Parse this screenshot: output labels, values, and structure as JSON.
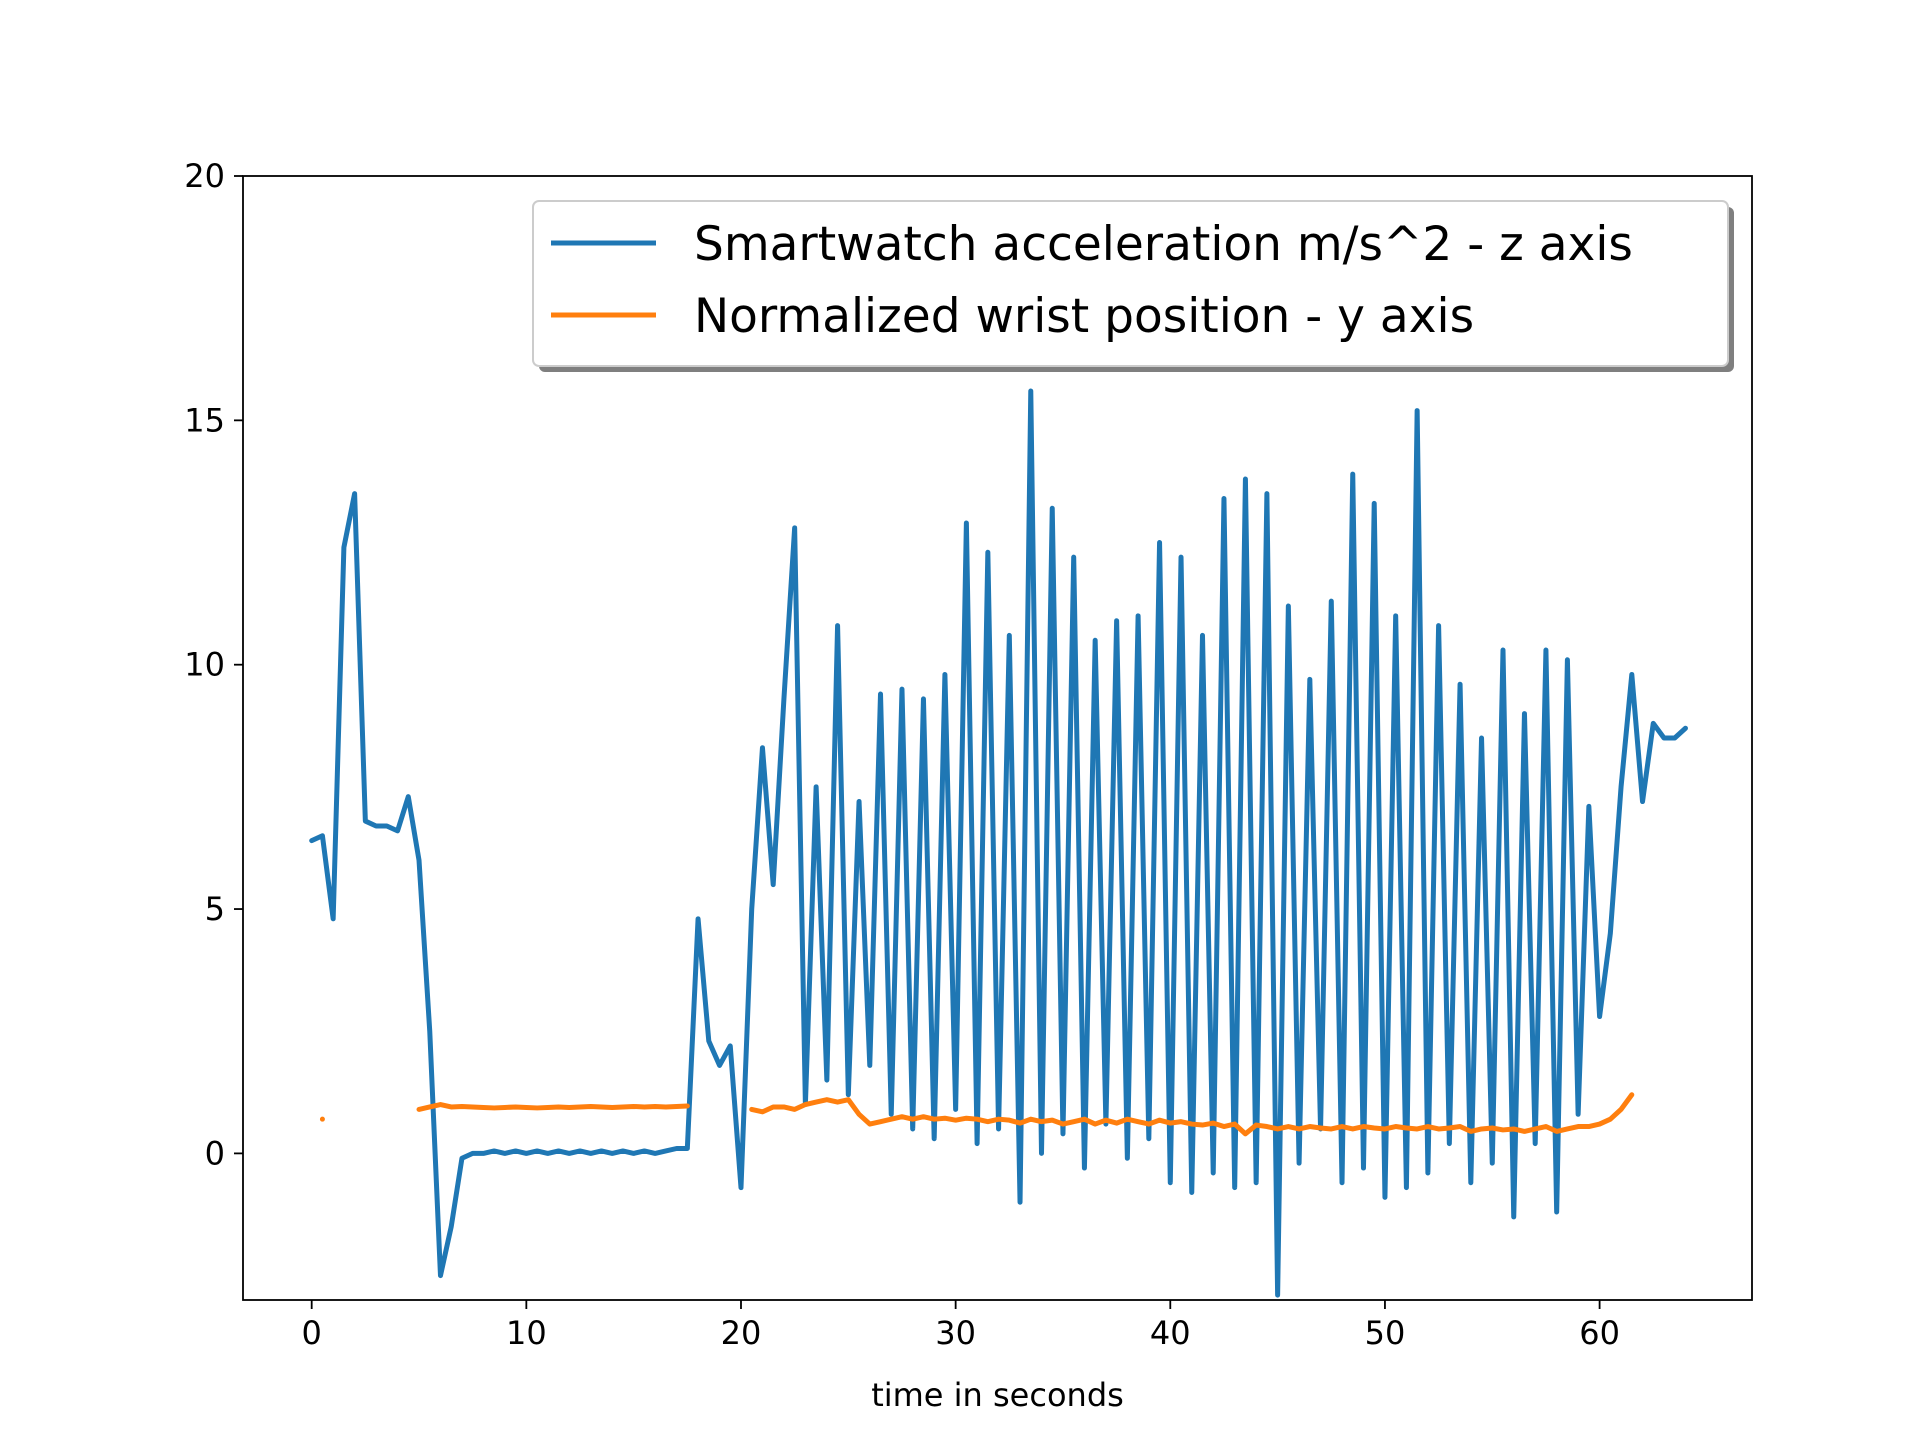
{
  "chart_data": {
    "type": "line",
    "x_label": "time in seconds",
    "x": [
      0,
      0.5,
      1,
      1.5,
      2,
      2.5,
      3,
      3.5,
      4,
      4.5,
      5,
      5.5,
      6,
      6.5,
      7,
      7.5,
      8,
      8.5,
      9,
      9.5,
      10,
      10.5,
      11,
      11.5,
      12,
      12.5,
      13,
      13.5,
      14,
      14.5,
      15,
      15.5,
      16,
      16.5,
      17,
      17.5,
      18,
      18.5,
      19,
      19.5,
      20,
      20.5,
      21,
      21.5,
      22,
      22.5,
      23,
      23.5,
      24,
      24.5,
      25,
      25.5,
      26,
      26.5,
      27,
      27.5,
      28,
      28.5,
      29,
      29.5,
      30,
      30.5,
      31,
      31.5,
      32,
      32.5,
      33,
      33.5,
      34,
      34.5,
      35,
      35.5,
      36,
      36.5,
      37,
      37.5,
      38,
      38.5,
      39,
      39.5,
      40,
      40.5,
      41,
      41.5,
      42,
      42.5,
      43,
      43.5,
      44,
      44.5,
      45,
      45.5,
      46,
      46.5,
      47,
      47.5,
      48,
      48.5,
      49,
      49.5,
      50,
      50.5,
      51,
      51.5,
      52,
      52.5,
      53,
      53.5,
      54,
      54.5,
      55,
      55.5,
      56,
      56.5,
      57,
      57.5,
      58,
      58.5,
      59,
      59.5,
      60,
      60.5,
      61,
      61.5,
      62,
      62.5,
      63,
      63.5,
      64
    ],
    "series": [
      {
        "name": "Smartwatch acceleration m/s^2 - z axis",
        "color": "#1f77b4",
        "values": [
          6.4,
          6.5,
          4.8,
          12.4,
          13.5,
          6.8,
          6.7,
          6.7,
          6.6,
          7.3,
          6.0,
          2.5,
          -2.5,
          -1.5,
          -0.1,
          0,
          0,
          0.05,
          0,
          0.05,
          0,
          0.05,
          0,
          0.05,
          0,
          0.05,
          0,
          0.05,
          0,
          0.05,
          0,
          0.05,
          0,
          0.05,
          0.1,
          0.1,
          4.8,
          2.3,
          1.8,
          2.2,
          -0.7,
          5.0,
          8.3,
          5.5,
          9.3,
          12.8,
          1.0,
          7.5,
          1.5,
          10.8,
          1.2,
          7.2,
          1.8,
          9.4,
          0.8,
          9.5,
          0.5,
          9.3,
          0.3,
          9.8,
          0.9,
          12.9,
          0.2,
          12.3,
          0.5,
          10.6,
          -1.0,
          15.6,
          0.0,
          13.2,
          0.4,
          12.2,
          -0.3,
          10.5,
          0.6,
          10.9,
          -0.1,
          11.0,
          0.3,
          12.5,
          -0.6,
          12.2,
          -0.8,
          10.6,
          -0.4,
          13.4,
          -0.7,
          13.8,
          -0.6,
          13.5,
          -2.9,
          11.2,
          -0.2,
          9.7,
          0.5,
          11.3,
          -0.6,
          13.9,
          -0.3,
          13.3,
          -0.9,
          11.0,
          -0.7,
          15.2,
          -0.4,
          10.8,
          0.2,
          9.6,
          -0.6,
          8.5,
          -0.2,
          10.3,
          -1.3,
          9.0,
          0.2,
          10.3,
          -1.2,
          10.1,
          0.8,
          7.1,
          2.8,
          4.5,
          7.5,
          9.8,
          7.2,
          8.8,
          8.5,
          8.5,
          8.7
        ]
      },
      {
        "name": "Normalized wrist position - y axis",
        "color": "#ff7f0e",
        "values": [
          null,
          0.7,
          null,
          null,
          null,
          null,
          null,
          null,
          null,
          null,
          0.9,
          0.95,
          1.0,
          0.95,
          0.96,
          0.95,
          0.94,
          0.93,
          0.94,
          0.95,
          0.94,
          0.93,
          0.94,
          0.95,
          0.94,
          0.95,
          0.96,
          0.95,
          0.94,
          0.95,
          0.96,
          0.95,
          0.96,
          0.95,
          0.96,
          0.97,
          null,
          null,
          null,
          null,
          null,
          0.9,
          0.85,
          0.95,
          0.95,
          0.9,
          1.0,
          1.05,
          1.1,
          1.05,
          1.1,
          0.8,
          0.6,
          0.65,
          0.7,
          0.75,
          0.7,
          0.75,
          0.7,
          0.72,
          0.68,
          0.72,
          0.7,
          0.65,
          0.7,
          0.68,
          0.62,
          0.7,
          0.65,
          0.68,
          0.6,
          0.65,
          0.7,
          0.6,
          0.68,
          0.62,
          0.7,
          0.65,
          0.6,
          0.68,
          0.62,
          0.65,
          0.6,
          0.58,
          0.62,
          0.55,
          0.6,
          0.4,
          0.58,
          0.55,
          0.5,
          0.55,
          0.5,
          0.55,
          0.52,
          0.5,
          0.55,
          0.5,
          0.55,
          0.52,
          0.5,
          0.55,
          0.52,
          0.5,
          0.55,
          0.5,
          0.52,
          0.55,
          0.45,
          0.5,
          0.52,
          0.48,
          0.5,
          0.45,
          0.5,
          0.55,
          0.45,
          0.5,
          0.55,
          0.55,
          0.6,
          0.7,
          0.9,
          1.2,
          null,
          null,
          null,
          null,
          null
        ]
      }
    ],
    "xlim": [
      -3.2,
      67.1
    ],
    "ylim": [
      -3,
      20
    ],
    "xticks": [
      0,
      10,
      20,
      30,
      40,
      50,
      60
    ],
    "yticks": [
      0,
      5,
      10,
      15,
      20
    ],
    "legend": "upper right",
    "legend_shadow": true,
    "grid": false
  }
}
